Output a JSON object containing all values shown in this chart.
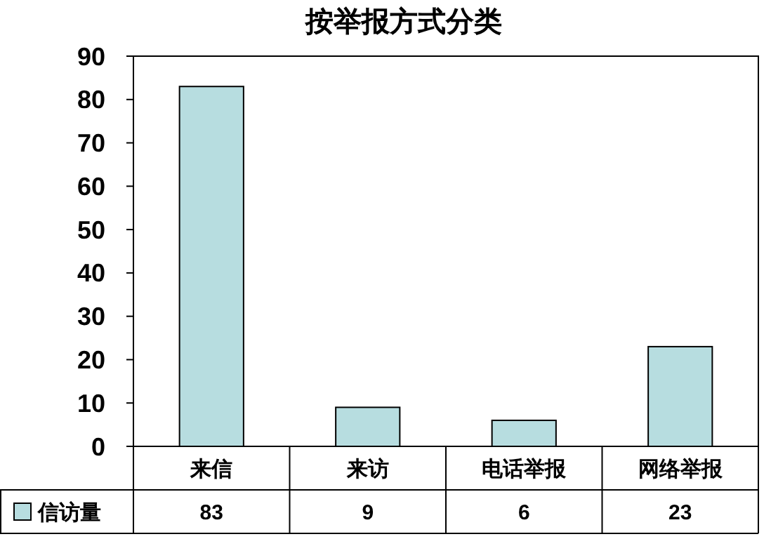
{
  "chart_data": {
    "type": "bar",
    "title": "按举报方式分类",
    "categories": [
      "来信",
      "来访",
      "电话举报",
      "网络举报"
    ],
    "series": [
      {
        "name": "信访量",
        "color": "#b7dde0",
        "values": [
          83,
          9,
          6,
          23
        ]
      }
    ],
    "ylim": [
      0,
      90
    ],
    "yticks": [
      0,
      10,
      20,
      30,
      40,
      50,
      60,
      70,
      80,
      90
    ],
    "grid": false,
    "legend": "bottom left",
    "data_labels": true
  }
}
